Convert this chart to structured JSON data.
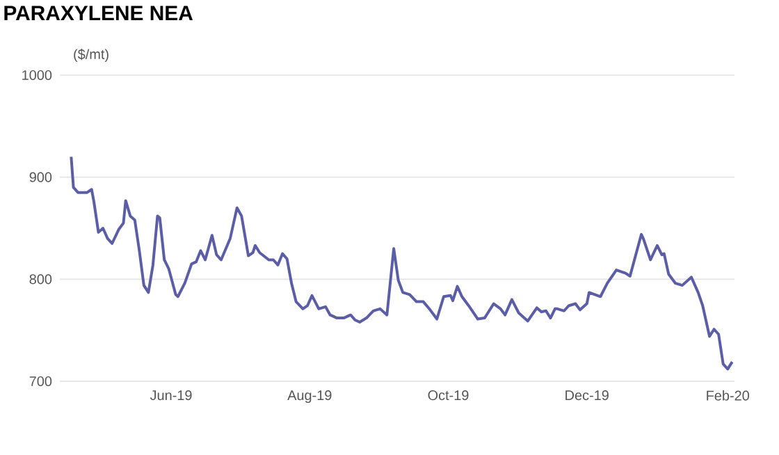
{
  "chart_data": {
    "type": "line",
    "title": "PARAXYLENE NEA",
    "ylabel": "($/mt)",
    "xlim": [
      "2019-04-13",
      "2020-02-04"
    ],
    "ylim": [
      700,
      1000
    ],
    "yticks": [
      700,
      800,
      900,
      1000
    ],
    "xticks": [
      {
        "value": "2019-06-01",
        "label": "Jun-19"
      },
      {
        "value": "2019-08-01",
        "label": "Aug-19"
      },
      {
        "value": "2019-10-01",
        "label": "Oct-19"
      },
      {
        "value": "2019-12-01",
        "label": "Dec-19"
      },
      {
        "value": "2020-02-01",
        "label": "Feb-20"
      }
    ],
    "grid": "y",
    "legend": false,
    "marker": "none",
    "line_style": "solid",
    "x": [
      "2019-04-18",
      "2019-04-19",
      "2019-04-21",
      "2019-04-25",
      "2019-04-27",
      "2019-04-28",
      "2019-04-30",
      "2019-05-02",
      "2019-05-04",
      "2019-05-06",
      "2019-05-09",
      "2019-05-11",
      "2019-05-12",
      "2019-05-14",
      "2019-05-16",
      "2019-05-18",
      "2019-05-20",
      "2019-05-22",
      "2019-05-24",
      "2019-05-26",
      "2019-05-27",
      "2019-05-29",
      "2019-05-31",
      "2019-06-03",
      "2019-06-04",
      "2019-06-07",
      "2019-06-10",
      "2019-06-12",
      "2019-06-14",
      "2019-06-16",
      "2019-06-19",
      "2019-06-21",
      "2019-06-23",
      "2019-06-27",
      "2019-06-30",
      "2019-07-02",
      "2019-07-05",
      "2019-07-07",
      "2019-07-08",
      "2019-07-10",
      "2019-07-14",
      "2019-07-16",
      "2019-07-18",
      "2019-07-20",
      "2019-07-22",
      "2019-07-24",
      "2019-07-26",
      "2019-07-29",
      "2019-07-31",
      "2019-08-02",
      "2019-08-05",
      "2019-08-08",
      "2019-08-10",
      "2019-08-13",
      "2019-08-16",
      "2019-08-19",
      "2019-08-21",
      "2019-08-23",
      "2019-08-26",
      "2019-08-29",
      "2019-09-01",
      "2019-09-04",
      "2019-09-07",
      "2019-09-09",
      "2019-09-11",
      "2019-09-14",
      "2019-09-17",
      "2019-09-20",
      "2019-09-23",
      "2019-09-26",
      "2019-09-29",
      "2019-10-02",
      "2019-10-03",
      "2019-10-05",
      "2019-10-07",
      "2019-10-10",
      "2019-10-14",
      "2019-10-17",
      "2019-10-21",
      "2019-10-24",
      "2019-10-26",
      "2019-10-29",
      "2019-11-01",
      "2019-11-05",
      "2019-11-09",
      "2019-11-11",
      "2019-11-13",
      "2019-11-15",
      "2019-11-17",
      "2019-11-18",
      "2019-11-21",
      "2019-11-23",
      "2019-11-26",
      "2019-11-28",
      "2019-12-01",
      "2019-12-02",
      "2019-12-07",
      "2019-12-10",
      "2019-12-14",
      "2019-12-18",
      "2019-12-20",
      "2019-12-25",
      "2019-12-26",
      "2019-12-29",
      "2020-01-01",
      "2020-01-03",
      "2020-01-04",
      "2020-01-06",
      "2020-01-09",
      "2020-01-12",
      "2020-01-16",
      "2020-01-19",
      "2020-01-21",
      "2020-01-24",
      "2020-01-26",
      "2020-01-28",
      "2020-01-30",
      "2020-02-01",
      "2020-02-03"
    ],
    "series": [
      {
        "color": "#5b5ea6",
        "values": [
          920,
          890,
          885,
          885,
          888,
          876,
          846,
          850,
          840,
          835,
          849,
          855,
          877,
          862,
          858,
          828,
          794,
          787,
          814,
          862,
          860,
          819,
          810,
          785,
          783,
          796,
          815,
          817,
          828,
          819,
          843,
          824,
          819,
          840,
          870,
          862,
          823,
          826,
          833,
          826,
          819,
          819,
          814,
          825,
          820,
          796,
          778,
          771,
          774,
          784,
          771,
          773,
          765,
          762,
          762,
          765,
          760,
          758,
          762,
          769,
          771,
          765,
          830,
          799,
          787,
          785,
          778,
          778,
          770,
          761,
          783,
          784,
          779,
          793,
          783,
          774,
          761,
          762,
          776,
          771,
          765,
          780,
          767,
          759,
          772,
          768,
          769,
          762,
          771,
          771,
          769,
          774,
          776,
          770,
          776,
          787,
          783,
          796,
          809,
          806,
          803,
          844,
          839,
          819,
          833,
          824,
          825,
          805,
          796,
          794,
          802,
          787,
          774,
          744,
          751,
          746,
          717,
          712,
          719
        ]
      }
    ]
  }
}
